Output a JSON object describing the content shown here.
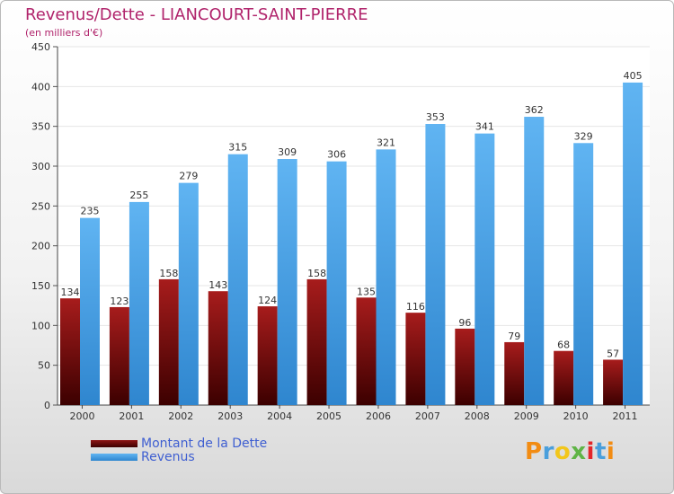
{
  "title": "Revenus/Dette - LIANCOURT-SAINT-PIERRE",
  "subtitle": "(en milliers d'€)",
  "logo": {
    "text": "Proxiti",
    "colors": [
      "#f28c13",
      "#4a9fdc",
      "#f2c61b",
      "#5fb446",
      "#e3262a",
      "#4a9fdc",
      "#f28c13"
    ]
  },
  "colors": {
    "dette": "#7a0f0f",
    "revenus": "#4aa3e8",
    "title": "#b0236b",
    "legend_text": "#3f5fd1"
  },
  "chart_data": {
    "type": "bar",
    "categories": [
      "2000",
      "2001",
      "2002",
      "2003",
      "2004",
      "2005",
      "2006",
      "2007",
      "2008",
      "2009",
      "2010",
      "2011"
    ],
    "series": [
      {
        "name": "Montant de la Dette",
        "values": [
          134,
          123,
          158,
          143,
          124,
          158,
          135,
          116,
          96,
          79,
          68,
          57
        ]
      },
      {
        "name": "Revenus",
        "values": [
          235,
          255,
          279,
          315,
          309,
          306,
          321,
          353,
          341,
          362,
          329,
          405
        ]
      }
    ],
    "ylim": [
      0,
      450
    ],
    "yticks": [
      0,
      50,
      100,
      150,
      200,
      250,
      300,
      350,
      400,
      450
    ],
    "grid": true,
    "legend": "bottom-left"
  }
}
